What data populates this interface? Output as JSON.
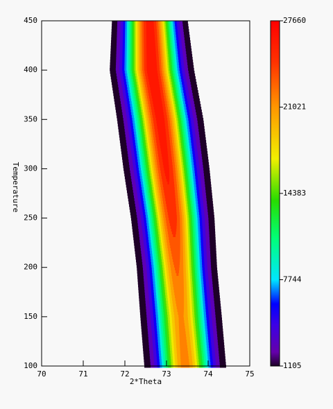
{
  "chart_data": {
    "type": "contour",
    "xlabel": "2*Theta",
    "ylabel": "Temperature",
    "xlim": [
      70,
      75
    ],
    "xticks": [
      70,
      71,
      72,
      73,
      74,
      75
    ],
    "ylim": [
      100,
      450
    ],
    "yticks": [
      100,
      150,
      200,
      250,
      300,
      350,
      400,
      450
    ],
    "clim": [
      1105,
      27660
    ],
    "cticks": [
      1105,
      7744,
      14383,
      21021,
      27660
    ],
    "y": [
      100,
      150,
      200,
      250,
      300,
      350,
      400,
      450
    ],
    "center": [
      73.45,
      73.35,
      73.25,
      73.15,
      73.0,
      72.85,
      72.65,
      72.6
    ],
    "sigma": [
      0.4,
      0.4,
      0.39,
      0.4,
      0.41,
      0.41,
      0.4,
      0.36
    ],
    "peak": [
      22500,
      22000,
      23500,
      25500,
      26500,
      27000,
      27500,
      27000
    ]
  }
}
